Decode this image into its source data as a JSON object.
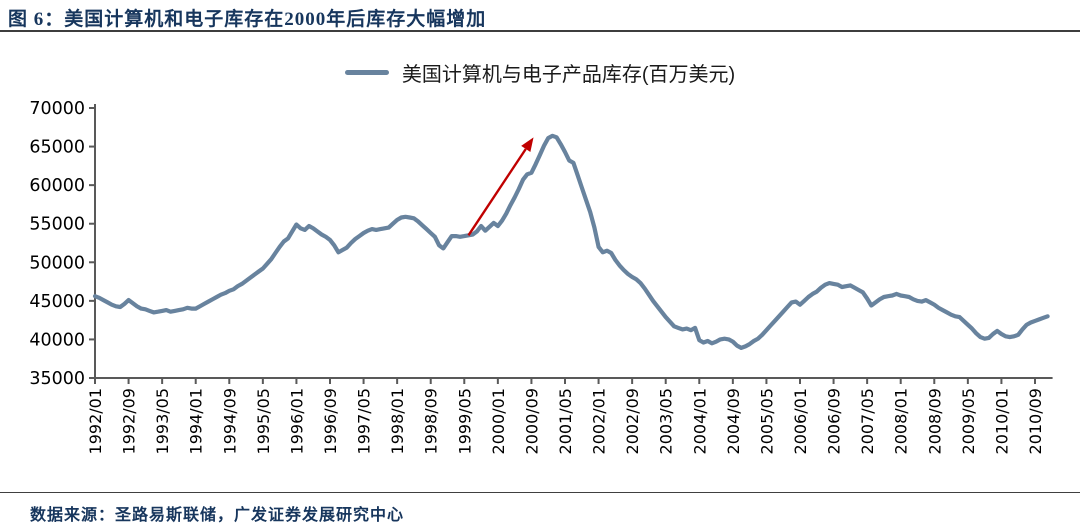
{
  "figure": {
    "title": "图 6：美国计算机和电子库存在2000年后库存大幅增加",
    "source_note": "数据来源：圣路易斯联储，广发证券发展研究中心"
  },
  "legend": {
    "label": "美国计算机与电子产品库存(百万美元)"
  },
  "colors": {
    "title_navy": "#17365d",
    "series_line": "#68839E",
    "arrow_red": "#C00000",
    "axis": "#595959",
    "tick_label": "#000000",
    "rule": "#3d3d3d"
  },
  "chart_data": {
    "type": "line",
    "title": "",
    "series_name": "美国计算机与电子产品库存(百万美元)",
    "unit": "百万美元",
    "x_frequency": "monthly",
    "x_start": "1992/01",
    "x_end": "2010/12",
    "x_tick_interval_months": 8,
    "x_ticklabels": [
      "1992/01",
      "1992/09",
      "1993/05",
      "1994/01",
      "1994/09",
      "1995/05",
      "1996/01",
      "1996/09",
      "1997/05",
      "1998/01",
      "1998/09",
      "1999/05",
      "2000/01",
      "2000/09",
      "2001/05",
      "2002/01",
      "2002/09",
      "2003/05",
      "2004/01",
      "2004/09",
      "2005/05",
      "2006/01",
      "2006/09",
      "2007/05",
      "2008/01",
      "2008/09",
      "2009/05",
      "2010/01",
      "2010/09"
    ],
    "y_ticks": [
      35000,
      40000,
      45000,
      50000,
      55000,
      60000,
      65000,
      70000
    ],
    "ylim": [
      35000,
      70000
    ],
    "grid": "off",
    "legend_position": "top-center",
    "values": [
      45600,
      45400,
      45100,
      44800,
      44500,
      44300,
      44200,
      44600,
      45100,
      44700,
      44300,
      44000,
      43900,
      43700,
      43500,
      43600,
      43700,
      43800,
      43600,
      43700,
      43800,
      43900,
      44100,
      44000,
      44000,
      44300,
      44600,
      44900,
      45200,
      45500,
      45800,
      46000,
      46300,
      46500,
      46900,
      47200,
      47600,
      48000,
      48400,
      48800,
      49200,
      49800,
      50400,
      51200,
      52000,
      52700,
      53100,
      54000,
      54900,
      54400,
      54200,
      54700,
      54400,
      54000,
      53600,
      53300,
      52900,
      52200,
      51300,
      51600,
      51900,
      52500,
      53000,
      53400,
      53800,
      54100,
      54300,
      54200,
      54300,
      54400,
      54500,
      55000,
      55500,
      55800,
      55900,
      55800,
      55700,
      55300,
      54800,
      54300,
      53800,
      53300,
      52200,
      51800,
      52600,
      53400,
      53400,
      53300,
      53400,
      53500,
      53600,
      54000,
      54700,
      54100,
      54600,
      55100,
      54700,
      55400,
      56300,
      57400,
      58400,
      59500,
      60700,
      61400,
      61600,
      62700,
      63900,
      65100,
      66100,
      66400,
      66200,
      65300,
      64300,
      63200,
      62900,
      61300,
      59700,
      58100,
      56500,
      54500,
      52000,
      51300,
      51500,
      51200,
      50300,
      49600,
      49000,
      48500,
      48100,
      47800,
      47300,
      46600,
      45800,
      45000,
      44300,
      43600,
      42900,
      42300,
      41700,
      41500,
      41300,
      41400,
      41200,
      41500,
      39900,
      39600,
      39800,
      39500,
      39700,
      40000,
      40100,
      40000,
      39700,
      39200,
      38900,
      39100,
      39400,
      39800,
      40100,
      40600,
      41200,
      41800,
      42400,
      43000,
      43600,
      44200,
      44800,
      44900,
      44500,
      45000,
      45500,
      45900,
      46200,
      46700,
      47100,
      47300,
      47200,
      47100,
      46800,
      46900,
      47000,
      46700,
      46400,
      46100,
      45300,
      44400,
      44800,
      45200,
      45500,
      45600,
      45700,
      45900,
      45700,
      45600,
      45500,
      45200,
      45000,
      44900,
      45100,
      44800,
      44500,
      44100,
      43800,
      43500,
      43200,
      43000,
      42900,
      42400,
      41900,
      41400,
      40800,
      40300,
      40100,
      40200,
      40700,
      41100,
      40700,
      40400,
      40300,
      40400,
      40600,
      41300,
      41900,
      42200,
      42400,
      42600,
      42800,
      43000
    ],
    "annotation": {
      "type": "arrow",
      "color": "#C00000",
      "from": {
        "month_index": 89,
        "value": 53500
      },
      "to": {
        "month_index": 104.5,
        "value": 66200
      }
    }
  }
}
